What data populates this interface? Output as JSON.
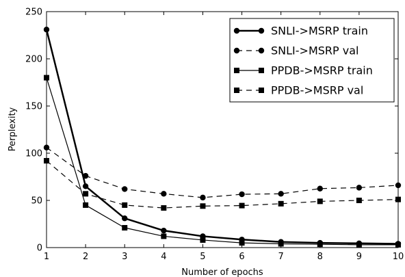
{
  "chart_data": {
    "type": "line",
    "title": "",
    "xlabel": "Number of epochs",
    "ylabel": "Perplexity",
    "xlim": [
      1,
      10
    ],
    "ylim": [
      0,
      250
    ],
    "xticks": [
      1,
      2,
      3,
      4,
      5,
      6,
      7,
      8,
      9,
      10
    ],
    "yticks": [
      0,
      50,
      100,
      150,
      200,
      250
    ],
    "grid": false,
    "legend_position": "top-right",
    "x": [
      1,
      2,
      3,
      4,
      5,
      6,
      7,
      8,
      9,
      10
    ],
    "series": [
      {
        "name": "SNLI->MSRP train",
        "values": [
          231,
          65,
          31,
          18,
          12,
          8.5,
          6,
          5,
          4.5,
          4
        ],
        "line": "solid",
        "marker": "circle",
        "width": 2.5,
        "color": "#000000"
      },
      {
        "name": "SNLI->MSRP val",
        "values": [
          106,
          76,
          62,
          57,
          53,
          56.5,
          57,
          62.5,
          63.5,
          66
        ],
        "line": "dashed",
        "marker": "circle",
        "width": 1.2,
        "color": "#000000"
      },
      {
        "name": "PPDB->MSRP train",
        "values": [
          180,
          45,
          21,
          12,
          8,
          5,
          4,
          3.5,
          3,
          3
        ],
        "line": "solid",
        "marker": "square",
        "width": 1.2,
        "color": "#000000"
      },
      {
        "name": "PPDB->MSRP val",
        "values": [
          92,
          57,
          45,
          42,
          44,
          44.5,
          46.5,
          49,
          50,
          51
        ],
        "line": "dashed",
        "marker": "square",
        "width": 1.2,
        "color": "#000000"
      }
    ]
  }
}
